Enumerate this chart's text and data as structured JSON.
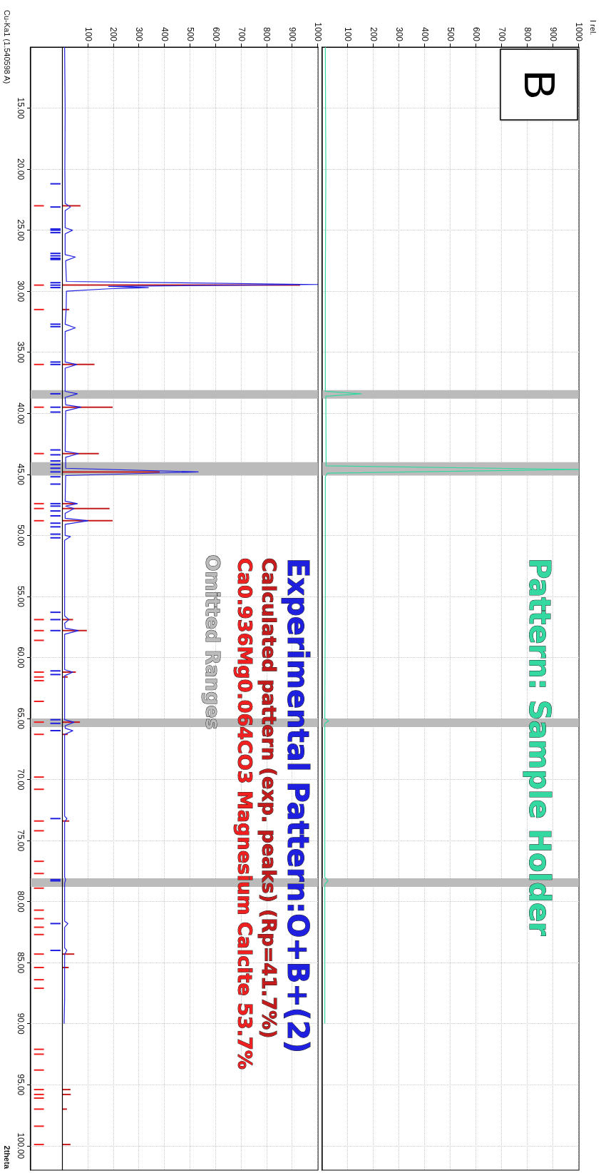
{
  "chart_data": [
    {
      "type": "line",
      "orientation": "horizontal",
      "ylabel": "2theta",
      "ylim": [
        102,
        10
      ],
      "xlim": [
        -125,
        1000
      ],
      "yticks": [
        {
          "value": 15,
          "label": "15.00"
        },
        {
          "value": 20,
          "label": "20.00"
        },
        {
          "value": 25,
          "label": "25.00"
        },
        {
          "value": 30,
          "label": "30.00"
        },
        {
          "value": 35,
          "label": "35.00"
        },
        {
          "value": 40,
          "label": "40.00"
        },
        {
          "value": 45,
          "label": "45.00"
        },
        {
          "value": 50,
          "label": "50.00"
        },
        {
          "value": 55,
          "label": "55.00"
        },
        {
          "value": 60,
          "label": "60.00"
        },
        {
          "value": 65,
          "label": "65.00"
        },
        {
          "value": 70,
          "label": "70.00"
        },
        {
          "value": 75,
          "label": "75.00"
        },
        {
          "value": 80,
          "label": "80.00"
        },
        {
          "value": 85,
          "label": "85.00"
        },
        {
          "value": 90,
          "label": "90.00"
        },
        {
          "value": 95,
          "label": "95.00"
        },
        {
          "value": 100,
          "label": "100.00"
        }
      ],
      "xticks": [
        100,
        200,
        300,
        400,
        500,
        600,
        700,
        800,
        900,
        1000
      ],
      "grid": true,
      "legend": "right",
      "annotations": [
        "Cu-Ka1 (1.540598 A)",
        "Omitted Ranges"
      ],
      "ref_lines": [
        {
          "axis": "x",
          "value": 0,
          "color": "#000000"
        }
      ],
      "bands": [
        {
          "axis": "y",
          "from": 38.1,
          "to": 38.8,
          "color": "#bbbbbb"
        },
        {
          "axis": "y",
          "from": 44.0,
          "to": 45.1,
          "color": "#bbbbbb"
        },
        {
          "axis": "y",
          "from": 65.0,
          "to": 65.7,
          "color": "#bbbbbb"
        },
        {
          "axis": "y",
          "from": 78.1,
          "to": 78.8,
          "color": "#bbbbbb"
        }
      ],
      "series": [
        {
          "name": "Experimental Pattern:O+B+(2)",
          "color": "#1f1fe0",
          "x": [
            10,
            15,
            20,
            22.8,
            23.1,
            23.4,
            24.8,
            25.0,
            25.3,
            27.0,
            27.2,
            27.5,
            29.2,
            29.45,
            29.6,
            29.7,
            29.8,
            30.0,
            31.5,
            32.7,
            33.0,
            33.3,
            35.8,
            36.0,
            36.3,
            38.2,
            38.4,
            38.7,
            39.3,
            39.5,
            39.8,
            43.1,
            43.3,
            43.6,
            44.5,
            44.8,
            45.1,
            47.2,
            47.4,
            47.6,
            47.8,
            48.2,
            48.6,
            48.8,
            49.1,
            50.0,
            50.1,
            50.4,
            56.6,
            56.9,
            57.2,
            57.6,
            57.8,
            58.1,
            61.0,
            61.2,
            61.5,
            65.1,
            65.3,
            65.6,
            65.8,
            66.0,
            66.3,
            70,
            73.0,
            73.2,
            73.5,
            78.0,
            78.2,
            78.5,
            81.6,
            81.8,
            82.1,
            83.8,
            84.0,
            84.3,
            88,
            90
          ],
          "values": [
            8,
            10,
            9,
            10,
            31,
            10,
            10,
            39,
            10,
            10,
            50,
            12,
            15,
            1000,
            180,
            336,
            180,
            15,
            14,
            10,
            50,
            10,
            10,
            55,
            10,
            10,
            58,
            10,
            12,
            72,
            12,
            10,
            63,
            12,
            12,
            531,
            12,
            10,
            58,
            12,
            45,
            10,
            10,
            100,
            10,
            10,
            31,
            8,
            8,
            25,
            8,
            10,
            62,
            8,
            8,
            40,
            8,
            8,
            45,
            10,
            10,
            40,
            8,
            8,
            8,
            17,
            8,
            8,
            12,
            8,
            8,
            21,
            8,
            8,
            17,
            8,
            8,
            6
          ]
        },
        {
          "type": "bar",
          "name": "Calculated pattern (exp. peaks) (Rp=41.7%)",
          "color": "#c41c1c",
          "x": [
            23.0,
            29.5,
            31.5,
            36.0,
            39.5,
            43.3,
            44.8,
            47.4,
            47.8,
            48.8,
            56.9,
            57.8,
            61.2,
            61.6,
            65.3,
            66.3,
            73.4,
            84.3,
            85.4,
            95.4,
            95.8,
            97.0,
            99.9
          ],
          "values": [
            70,
            930,
            26,
            125,
            196,
            142,
            380,
            50,
            184,
            196,
            41,
            95,
            52,
            20,
            68,
            20,
            26,
            46,
            24,
            31,
            32,
            17,
            31
          ]
        },
        {
          "type": "bar",
          "name": "Ca0.936Mg0.064CO3 Magnesium Calcite 53.7%",
          "color": "#f02020",
          "x": [
            23.0,
            29.5,
            31.5,
            36.0,
            39.5,
            43.3,
            47.4,
            47.8,
            48.8,
            56.9,
            57.8,
            58.6,
            61.2,
            61.6,
            61.9,
            63.6,
            65.3,
            66.3,
            69.8,
            70.8,
            73.4,
            74.2,
            76.7,
            77.7,
            78.9,
            80.7,
            81.4,
            82.1,
            82.7,
            84.3,
            85.4,
            86.4,
            87.1,
            92.1,
            92.5,
            93.8,
            95.4,
            95.8,
            96.1,
            97.0,
            98.4,
            99.9
          ],
          "base": [
            -112,
            -112,
            -112,
            -112,
            -112,
            -112,
            -112,
            -112,
            -112,
            -112,
            -112,
            -112,
            -112,
            -112,
            -112,
            -112,
            -112,
            -112,
            -112,
            -112,
            -112,
            -112,
            -112,
            -112,
            -112,
            -112,
            -112,
            -112,
            -112,
            -112,
            -112,
            -112,
            -112,
            -112,
            -112,
            -112,
            -112,
            -112,
            -112,
            -112,
            -112,
            -112
          ],
          "values": [
            39,
            39,
            39,
            39,
            39,
            39,
            39,
            39,
            39,
            39,
            39,
            39,
            39,
            39,
            39,
            39,
            39,
            39,
            39,
            39,
            39,
            39,
            39,
            39,
            39,
            39,
            39,
            39,
            39,
            39,
            39,
            39,
            39,
            39,
            39,
            39,
            39,
            39,
            39,
            39,
            39,
            39
          ]
        },
        {
          "type": "bar",
          "color": "#1f1fe0",
          "x": [
            21.2,
            23.1,
            24.9,
            25.0,
            25.2,
            26.9,
            27.1,
            27.3,
            27.4,
            29.3,
            29.5,
            29.7,
            32.7,
            32.9,
            35.8,
            36.0,
            38.4,
            39.5,
            39.9,
            43.0,
            43.4,
            43.9,
            44.2,
            44.5,
            44.8,
            45.2,
            45.8,
            47.4,
            47.6,
            48.0,
            48.4,
            49.0,
            49.3,
            49.9,
            50.2,
            56.3,
            56.9,
            57.8,
            61.1,
            61.4,
            65.1,
            65.4,
            66.0,
            73.2,
            78.2,
            78.3,
            81.8,
            84.0
          ],
          "base": [
            -48,
            -48,
            -48,
            -48,
            -48,
            -48,
            -48,
            -48,
            -48,
            -48,
            -48,
            -48,
            -48,
            -48,
            -48,
            -48,
            -48,
            -48,
            -48,
            -48,
            -48,
            -48,
            -48,
            -48,
            -48,
            -48,
            -48,
            -48,
            -48,
            -48,
            -48,
            -48,
            -48,
            -48,
            -48,
            -48,
            -48,
            -48,
            -48,
            -48,
            -48,
            -48,
            -48,
            -48,
            -48,
            -48,
            -48,
            -48
          ],
          "values": [
            40,
            40,
            40,
            40,
            40,
            40,
            40,
            40,
            40,
            40,
            40,
            40,
            40,
            40,
            40,
            40,
            40,
            40,
            40,
            40,
            40,
            40,
            40,
            40,
            40,
            40,
            40,
            40,
            40,
            40,
            40,
            40,
            40,
            40,
            40,
            40,
            40,
            40,
            40,
            40,
            40,
            40,
            40,
            40,
            40,
            40,
            40,
            40
          ]
        }
      ]
    },
    {
      "type": "line",
      "orientation": "horizontal",
      "title": "B",
      "annotations": [
        "I rel."
      ],
      "ylim": [
        102,
        10
      ],
      "xlim": [
        0,
        1000
      ],
      "yticks": [
        15,
        20,
        25,
        30,
        35,
        40,
        45,
        50,
        55,
        60,
        65,
        70,
        75,
        80,
        85,
        90,
        95,
        100
      ],
      "xticks": [
        100,
        200,
        300,
        400,
        500,
        600,
        700,
        800,
        900,
        1000
      ],
      "tick_labels": "x",
      "grid": true,
      "legend": "right",
      "bands": [
        {
          "axis": "y",
          "from": 38.1,
          "to": 38.8,
          "color": "#bbbbbb"
        },
        {
          "axis": "y",
          "from": 44.0,
          "to": 45.1,
          "color": "#bbbbbb"
        },
        {
          "axis": "y",
          "from": 65.0,
          "to": 65.7,
          "color": "#bbbbbb"
        },
        {
          "axis": "y",
          "from": 78.1,
          "to": 78.8,
          "color": "#bbbbbb"
        }
      ],
      "series": [
        {
          "name": "Pattern: Sample Holder",
          "color": "#33d9a0",
          "x": [
            10,
            20,
            30,
            38.2,
            38.4,
            38.6,
            44.3,
            44.6,
            44.9,
            45.2,
            55,
            65.0,
            65.2,
            65.4,
            78.0,
            78.3,
            78.6,
            90
          ],
          "values": [
            12,
            14,
            12,
            12,
            152,
            14,
            15,
            1000,
            20,
            12,
            12,
            10,
            25,
            10,
            10,
            22,
            10,
            10
          ]
        }
      ]
    }
  ]
}
